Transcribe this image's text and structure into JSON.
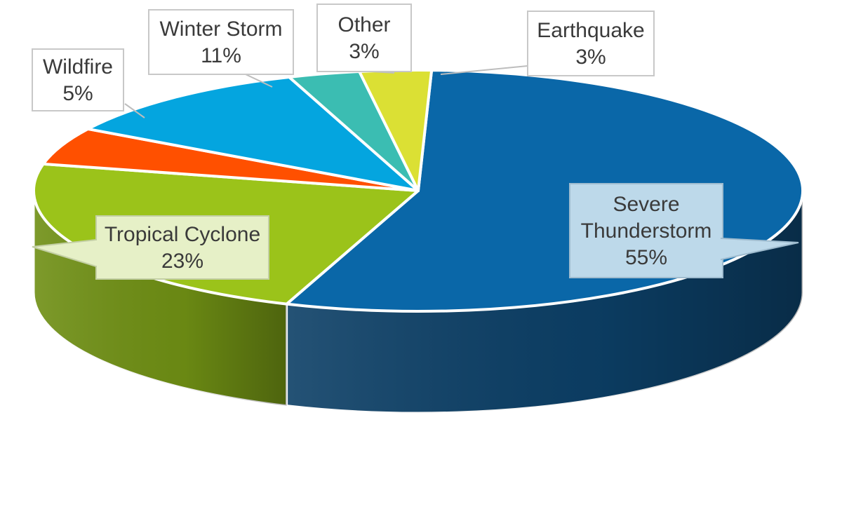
{
  "chart_data": {
    "type": "pie",
    "title": "",
    "slices": [
      {
        "label": "Severe Thunderstorm",
        "value": 55,
        "pct_label": "55%",
        "color": "#0a67a8",
        "side_color": "#0c3f66"
      },
      {
        "label": "Tropical Cyclone",
        "value": 23,
        "pct_label": "23%",
        "color": "#9bc31a",
        "side_color": "#6f8f14"
      },
      {
        "label": "Wildfire",
        "value": 5,
        "pct_label": "5%",
        "color": "#ff5000",
        "side_color": "#b43800"
      },
      {
        "label": "Winter Storm",
        "value": 11,
        "pct_label": "11%",
        "color": "#04a5df",
        "side_color": "#03729b"
      },
      {
        "label": "Other",
        "value": 3,
        "pct_label": "3%",
        "color": "#3bbdb2",
        "side_color": "#28847c"
      },
      {
        "label": "Earthquake",
        "value": 3,
        "pct_label": "3%",
        "color": "#dbe034",
        "side_color": "#9fa325"
      }
    ]
  }
}
